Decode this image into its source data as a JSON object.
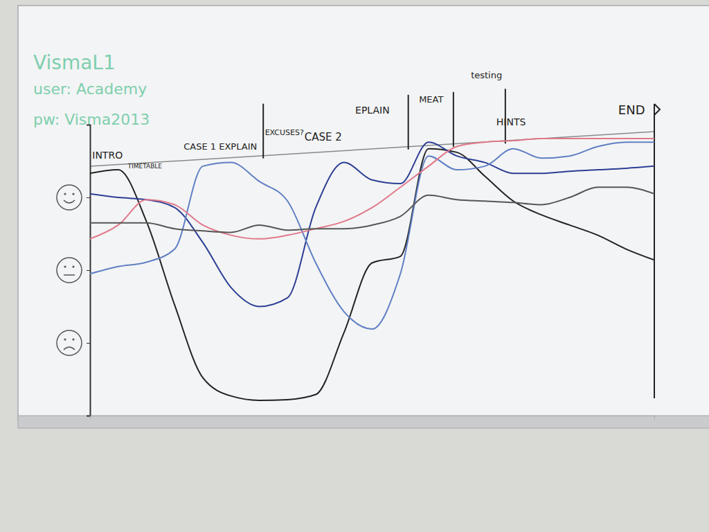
{
  "chart_data": {
    "type": "line",
    "notes": [
      "VismaL1",
      "user: Academy",
      "pw: Visma2013"
    ],
    "annotations": [
      {
        "x": 0.4,
        "text": "INTRO"
      },
      {
        "x": 6.7,
        "text": "TIMETABLE"
      },
      {
        "x": 16.6,
        "text": "CASE 1 EXPLAIN"
      },
      {
        "x": 31,
        "text": "EXCUSES?"
      },
      {
        "x": 38,
        "text": "CASE 2"
      },
      {
        "x": 47,
        "text": "EPLAIN"
      },
      {
        "x": 58.3,
        "text": "MEAT"
      },
      {
        "x": 67.5,
        "text": "testing"
      },
      {
        "x": 72,
        "text": "HINTS"
      },
      {
        "x": 93.6,
        "text": "END"
      }
    ],
    "phase_dividers": [
      30.7,
      56.4,
      64.4,
      73.6,
      100
    ],
    "x": [
      0,
      5,
      10,
      15,
      20,
      25,
      30,
      35,
      40,
      45,
      50,
      55,
      60,
      65,
      70,
      75,
      80,
      85,
      90,
      95,
      100
    ],
    "xlim": [
      0,
      100
    ],
    "xticks": [
      0,
      100
    ],
    "ylim": [
      -2,
      2
    ],
    "yticks": [
      -1,
      0,
      1
    ],
    "tick_labels": false,
    "grid": false,
    "series": [
      {
        "color": "#222222",
        "values": [
          1.33,
          1.38,
          0.67,
          -0.48,
          -1.48,
          -1.73,
          -1.79,
          -1.78,
          -1.71,
          -0.86,
          0.1,
          0.19,
          1.67,
          1.62,
          1.29,
          0.95,
          0.76,
          0.62,
          0.48,
          0.29,
          0.14
        ]
      },
      {
        "color": "#2c3e94",
        "values": [
          1.05,
          1.0,
          0.97,
          0.86,
          0.38,
          -0.24,
          -0.5,
          -0.38,
          0.86,
          1.48,
          1.24,
          1.19,
          1.76,
          1.57,
          1.48,
          1.33,
          1.33,
          1.36,
          1.38,
          1.4,
          1.43
        ]
      },
      {
        "color": "#5f7fc4",
        "values": [
          -0.05,
          0.05,
          0.11,
          0.29,
          1.43,
          1.48,
          1.22,
          0.95,
          0.1,
          -0.57,
          -0.81,
          -0.05,
          1.57,
          1.38,
          1.43,
          1.67,
          1.54,
          1.57,
          1.7,
          1.76,
          1.76
        ]
      },
      {
        "color": "#e0788a",
        "values": [
          0.43,
          0.62,
          0.97,
          0.9,
          0.62,
          0.48,
          0.43,
          0.48,
          0.57,
          0.67,
          0.86,
          1.14,
          1.43,
          1.7,
          1.76,
          1.78,
          1.81,
          1.81,
          1.81,
          1.81,
          1.81
        ]
      },
      {
        "color": "#555555",
        "values": [
          0.65,
          0.65,
          0.65,
          0.57,
          0.54,
          0.52,
          0.62,
          0.55,
          0.57,
          0.57,
          0.62,
          0.74,
          1.03,
          0.97,
          0.95,
          0.93,
          0.9,
          1.0,
          1.14,
          1.14,
          1.05
        ]
      }
    ]
  }
}
